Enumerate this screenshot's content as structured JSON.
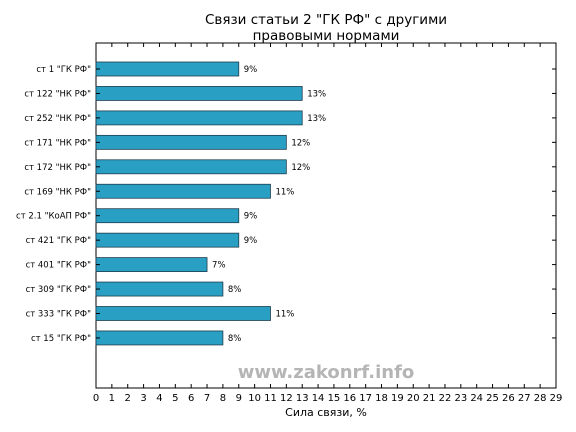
{
  "chart_data": {
    "type": "bar",
    "orientation": "horizontal",
    "title": "Связи статьи 2 \"ГК РФ\" с другими правовыми нормами",
    "title_lines": [
      "Связи статьи 2 \"ГК РФ\" с другими",
      "правовыми нормами"
    ],
    "xlabel": "Сила связи, %",
    "ylabel": "",
    "xlim": [
      0,
      29
    ],
    "xticks": [
      "0",
      "1",
      "2",
      "3",
      "4",
      "5",
      "6",
      "7",
      "8",
      "9",
      "10",
      "11",
      "12",
      "13",
      "14",
      "15",
      "16",
      "17",
      "18",
      "19",
      "20",
      "21",
      "22",
      "23",
      "24",
      "25",
      "26",
      "27",
      "28",
      "29"
    ],
    "categories": [
      "ст 1 \"ГК РФ\"",
      "ст 122 \"НК РФ\"",
      "ст 252 \"НК РФ\"",
      "ст 171 \"НК РФ\"",
      "ст 172 \"НК РФ\"",
      "ст 169 \"НК РФ\"",
      "ст 2.1 \"КоАП РФ\"",
      "ст 421 \"ГК РФ\"",
      "ст 401 \"ГК РФ\"",
      "ст 309 \"ГК РФ\"",
      "ст 333 \"ГК РФ\"",
      "ст 15 \"ГК РФ\""
    ],
    "values": [
      9,
      13,
      13,
      12,
      12,
      11,
      9,
      9,
      7,
      8,
      11,
      8
    ],
    "value_labels": [
      "9%",
      "13%",
      "13%",
      "12%",
      "12%",
      "11%",
      "9%",
      "9%",
      "7%",
      "8%",
      "11%",
      "8%"
    ],
    "bar_color": "#2a9fc4",
    "grid": false,
    "watermark": "www.zakonrf.info"
  }
}
